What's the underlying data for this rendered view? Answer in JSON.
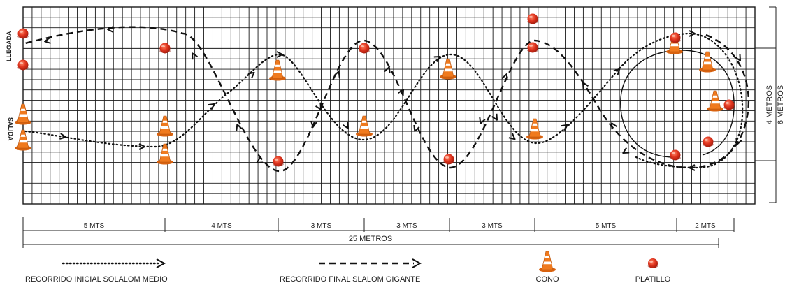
{
  "side_labels": {
    "arrival": "LLEGADA",
    "start": "SALIDA"
  },
  "right_labels": {
    "inner": "4 METROS",
    "outer": "6 METROS"
  },
  "segments": [
    {
      "label": "5 MTS"
    },
    {
      "label": "4 MTS"
    },
    {
      "label": "3 MTS"
    },
    {
      "label": "3 MTS"
    },
    {
      "label": "3 MTS"
    },
    {
      "label": "5 MTS"
    },
    {
      "label": "2 MTS"
    }
  ],
  "total_length": "25 METROS",
  "legend": {
    "initial_route": "RECORRIDO INICIAL SOLALOM MEDIO",
    "final_route": "RECORRIDO FINAL SLALOM GIGANTE",
    "cone": "CONO",
    "saucer": "PLATILLO"
  },
  "colors": {
    "grid": "#1a1a1a",
    "cone_orange": "#f07a1e",
    "cone_stripe": "#ffffff",
    "saucer_red": "#e0341e",
    "path": "#111111"
  }
}
